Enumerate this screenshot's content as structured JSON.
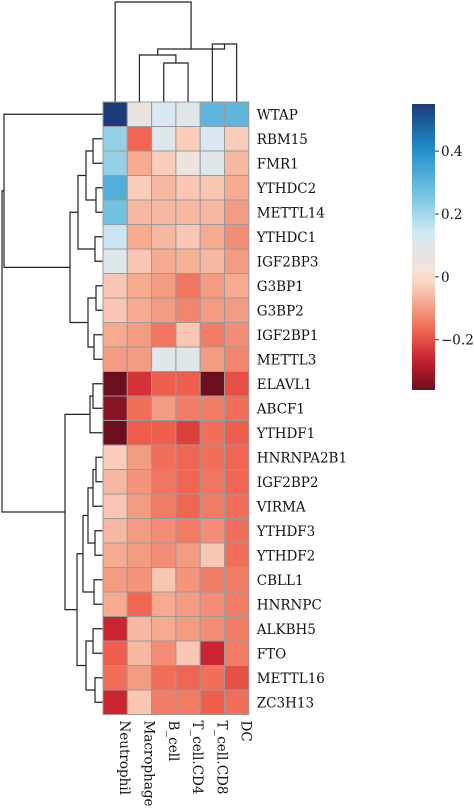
{
  "chart_data": {
    "type": "heatmap",
    "title": "",
    "xlabel": "",
    "ylabel": "",
    "columns": [
      "Neutrophil",
      "Macrophage",
      "B_cell",
      "T_cell.CD4",
      "T_cell.CD8",
      "DC"
    ],
    "rows": [
      "WTAP",
      "RBM15",
      "FMR1",
      "YTHDC2",
      "METTL14",
      "YTHDC1",
      "IGF2BP3",
      "G3BP1",
      "G3BP2",
      "IGF2BP1",
      "METTL3",
      "ELAVL1",
      "ABCF1",
      "YTHDF1",
      "HNRNPA2B1",
      "IGF2BP2",
      "VIRMA",
      "YTHDF3",
      "YTHDF2",
      "CBLL1",
      "HNRNPC",
      "ALKBH5",
      "FTO",
      "METTL16",
      "ZC3H13"
    ],
    "values": [
      [
        0.55,
        0.06,
        0.12,
        0.1,
        0.3,
        0.3
      ],
      [
        0.22,
        -0.17,
        0.1,
        -0.03,
        0.12,
        -0.03
      ],
      [
        0.22,
        -0.08,
        -0.03,
        0.05,
        0.1,
        -0.06
      ],
      [
        0.32,
        -0.03,
        -0.06,
        -0.04,
        -0.04,
        -0.08
      ],
      [
        0.27,
        -0.06,
        -0.06,
        -0.06,
        -0.06,
        -0.1
      ],
      [
        0.15,
        -0.08,
        -0.06,
        -0.04,
        -0.08,
        -0.12
      ],
      [
        0.1,
        -0.04,
        -0.08,
        -0.07,
        -0.06,
        -0.1
      ],
      [
        -0.04,
        -0.08,
        -0.1,
        -0.15,
        -0.1,
        -0.08
      ],
      [
        -0.04,
        -0.08,
        -0.1,
        -0.13,
        -0.1,
        -0.1
      ],
      [
        -0.08,
        -0.1,
        -0.15,
        -0.04,
        -0.14,
        -0.12
      ],
      [
        -0.1,
        -0.1,
        0.1,
        0.1,
        -0.1,
        -0.13
      ],
      [
        -0.36,
        -0.24,
        -0.18,
        -0.18,
        -0.38,
        -0.2
      ],
      [
        -0.33,
        -0.16,
        -0.1,
        -0.14,
        -0.14,
        -0.16
      ],
      [
        -0.36,
        -0.18,
        -0.18,
        -0.22,
        -0.16,
        -0.18
      ],
      [
        -0.03,
        -0.1,
        -0.16,
        -0.17,
        -0.16,
        -0.17
      ],
      [
        -0.06,
        -0.11,
        -0.15,
        -0.17,
        -0.15,
        -0.17
      ],
      [
        -0.04,
        -0.1,
        -0.14,
        -0.17,
        -0.14,
        -0.16
      ],
      [
        -0.06,
        -0.1,
        -0.12,
        -0.14,
        -0.12,
        -0.16
      ],
      [
        -0.08,
        -0.1,
        -0.12,
        -0.1,
        -0.04,
        -0.16
      ],
      [
        -0.1,
        -0.11,
        -0.04,
        -0.11,
        -0.14,
        -0.14
      ],
      [
        -0.08,
        -0.17,
        -0.08,
        -0.1,
        -0.12,
        -0.14
      ],
      [
        -0.26,
        -0.06,
        -0.08,
        -0.1,
        -0.12,
        -0.14
      ],
      [
        -0.18,
        -0.06,
        -0.12,
        -0.04,
        -0.26,
        -0.14
      ],
      [
        -0.16,
        -0.1,
        -0.16,
        -0.17,
        -0.16,
        -0.2
      ],
      [
        -0.26,
        -0.04,
        -0.14,
        -0.14,
        -0.18,
        -0.16
      ]
    ],
    "colorbar": {
      "min": -0.36,
      "max": 0.55,
      "ticks": [
        0.4,
        0.2,
        0,
        -0.2
      ],
      "tick_labels": [
        "0.4",
        "0.2",
        "0",
        "−0.2"
      ]
    },
    "colors": [
      "#6b0f1f",
      "#c51d2c",
      "#ef5e4c",
      "#f5a489",
      "#fbe1d2",
      "#d4e9f5",
      "#6dc0e0",
      "#1f8bc8",
      "#1c3b7a"
    ],
    "row_dendrogram": "shown on left",
    "column_dendrogram": "shown on top"
  }
}
